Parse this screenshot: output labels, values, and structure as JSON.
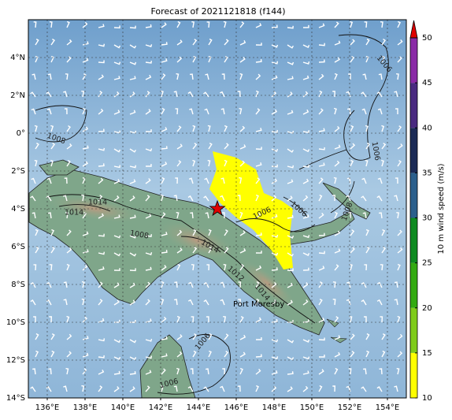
{
  "title": "Forecast of 2021121818 (f144)",
  "map": {
    "xlim": [
      135,
      155
    ],
    "ylim": [
      -14,
      6
    ],
    "lon_ticks": [
      {
        "value": 136,
        "label": "136°E"
      },
      {
        "value": 138,
        "label": "138°E"
      },
      {
        "value": 140,
        "label": "140°E"
      },
      {
        "value": 142,
        "label": "142°E"
      },
      {
        "value": 144,
        "label": "144°E"
      },
      {
        "value": 146,
        "label": "146°E"
      },
      {
        "value": 148,
        "label": "148°E"
      },
      {
        "value": 150,
        "label": "150°E"
      },
      {
        "value": 152,
        "label": "152°E"
      },
      {
        "value": 154,
        "label": "154°E"
      }
    ],
    "lat_ticks": [
      {
        "value": 4,
        "label": "4°N"
      },
      {
        "value": 2,
        "label": "2°N"
      },
      {
        "value": 0,
        "label": "0°"
      },
      {
        "value": -2,
        "label": "2°S"
      },
      {
        "value": -4,
        "label": "4°S"
      },
      {
        "value": -6,
        "label": "6°S"
      },
      {
        "value": -8,
        "label": "8°S"
      },
      {
        "value": -10,
        "label": "10°S"
      },
      {
        "value": -12,
        "label": "12°S"
      },
      {
        "value": -14,
        "label": "14°S"
      }
    ],
    "marker": {
      "lon": 145,
      "lat": -4,
      "color": "#e00000"
    },
    "place_label": "Port Moresby",
    "contour_labels": [
      "1008",
      "1014",
      "1014",
      "1008",
      "1014",
      "1012",
      "1014",
      "1006",
      "1006",
      "1006",
      "1006",
      "1008",
      "1006",
      "1006"
    ]
  },
  "colorbar": {
    "label": "10 m wind speed (m/s)",
    "lim": [
      10,
      50
    ],
    "ticks": [
      10,
      15,
      20,
      25,
      30,
      35,
      40,
      45,
      50
    ],
    "colors": [
      "#ffff00",
      "#7fcc1a",
      "#33aa11",
      "#0e8a20",
      "#2b5f8c",
      "#1b2a55",
      "#4a2a80",
      "#8a2aa6"
    ],
    "extend_color": "#e00000"
  }
}
